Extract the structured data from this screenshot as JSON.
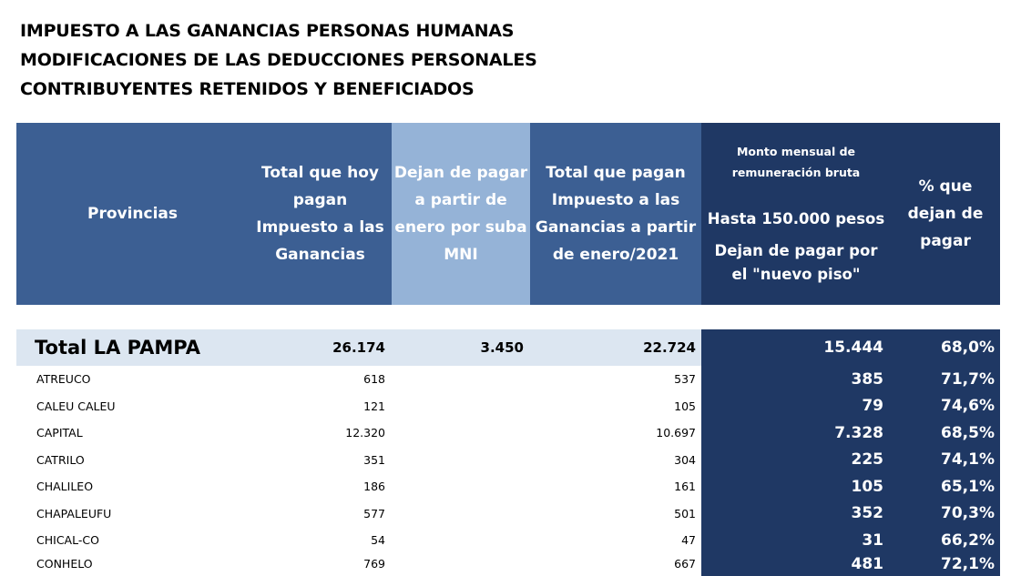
{
  "title": {
    "line1": "IMPUESTO A LAS GANANCIAS PERSONAS HUMANAS",
    "line2": "MODIFICACIONES DE LAS DEDUCCIONES PERSONALES",
    "line3": "CONTRIBUYENTES RETENIDOS Y BENEFICIADOS"
  },
  "headers": {
    "provincias": "Provincias",
    "total_hoy": [
      "Total que hoy",
      "pagan",
      "Impuesto a las",
      "Ganancias"
    ],
    "dejan": [
      "Dejan de pagar",
      "a partir de",
      "enero por suba",
      "MNI"
    ],
    "total_pagan": [
      "Total que pagan",
      "Impuesto a las",
      "Ganancias a partir",
      "de enero/2021"
    ],
    "monto_small": [
      "Monto mensual de",
      "remuneración bruta"
    ],
    "monto_hasta": "Hasta 150.000 pesos",
    "monto_dejan": [
      "Dejan de pagar por",
      "el \"nuevo piso\""
    ],
    "pct": [
      "% que",
      "dejan de",
      "pagar"
    ]
  },
  "total_row": {
    "name": "Total LA PAMPA",
    "total": "26.174",
    "dejan": "3.450",
    "pagan": "22.724",
    "monto": "15.444",
    "pct": "68,0%"
  },
  "rows": [
    {
      "name": "ATREUCO",
      "total": "618",
      "pagan": "537",
      "monto": "385",
      "pct": "71,7%"
    },
    {
      "name": "CALEU CALEU",
      "total": "121",
      "pagan": "105",
      "monto": "79",
      "pct": "74,6%"
    },
    {
      "name": "CAPITAL",
      "total": "12.320",
      "pagan": "10.697",
      "monto": "7.328",
      "pct": "68,5%"
    },
    {
      "name": "CATRILO",
      "total": "351",
      "pagan": "304",
      "monto": "225",
      "pct": "74,1%"
    },
    {
      "name": "CHALILEO",
      "total": "186",
      "pagan": "161",
      "monto": "105",
      "pct": "65,1%"
    },
    {
      "name": "CHAPALEUFU",
      "total": "577",
      "pagan": "501",
      "monto": "352",
      "pct": "70,3%"
    },
    {
      "name": "CHICAL-CO",
      "total": "54",
      "pagan": "47",
      "monto": "31",
      "pct": "66,2%"
    },
    {
      "name": "CONHELO",
      "total": "769",
      "pagan": "667",
      "monto": "481",
      "pct": "72,1%"
    }
  ]
}
